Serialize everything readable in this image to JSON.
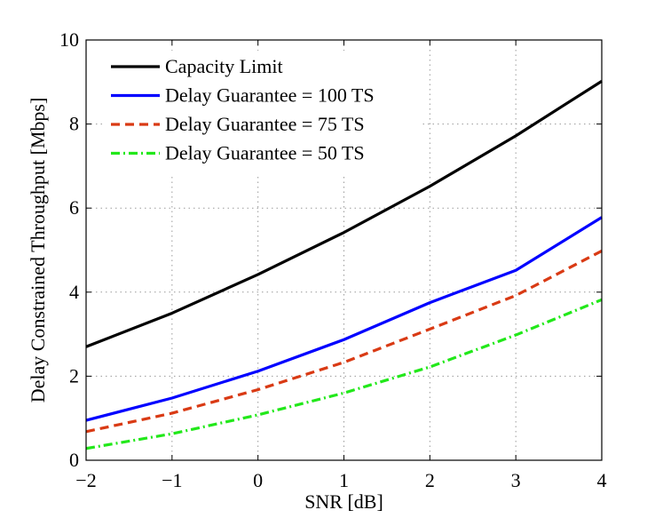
{
  "chart_data": {
    "type": "line",
    "title": "",
    "xlabel": "SNR [dB]",
    "ylabel": "Delay Constrained Throughput [Mbps]",
    "xlim": [
      -2,
      4
    ],
    "ylim": [
      0,
      10
    ],
    "grid": true,
    "legend_position": "top-left",
    "x": [
      -2,
      -1,
      0,
      1,
      2,
      3,
      4
    ],
    "xticks": [
      -2,
      -1,
      0,
      1,
      2,
      3,
      4
    ],
    "xtick_labels": [
      "−2",
      "−1",
      "0",
      "1",
      "2",
      "3",
      "4"
    ],
    "yticks": [
      0,
      2,
      4,
      6,
      8,
      10
    ],
    "ytick_labels": [
      "0",
      "2",
      "4",
      "6",
      "8",
      "10"
    ],
    "series": [
      {
        "name": "Capacity Limit",
        "color": "#000000",
        "dash": "solid",
        "values": [
          2.7,
          3.5,
          4.42,
          5.42,
          6.52,
          7.72,
          9.02
        ]
      },
      {
        "name": "Delay Guarantee = 100 TS",
        "color": "#0000ff",
        "dash": "solid",
        "values": [
          0.95,
          1.48,
          2.12,
          2.87,
          3.75,
          4.52,
          5.78
        ]
      },
      {
        "name": "Delay Guarantee = 75 TS",
        "color": "#d93a14",
        "dash": "dashed",
        "values": [
          0.68,
          1.12,
          1.68,
          2.33,
          3.12,
          3.92,
          4.98
        ]
      },
      {
        "name": "Delay Guarantee = 50 TS",
        "color": "#22e81a",
        "dash": "dashdot",
        "values": [
          0.28,
          0.63,
          1.08,
          1.6,
          2.22,
          2.98,
          3.82
        ]
      }
    ]
  }
}
